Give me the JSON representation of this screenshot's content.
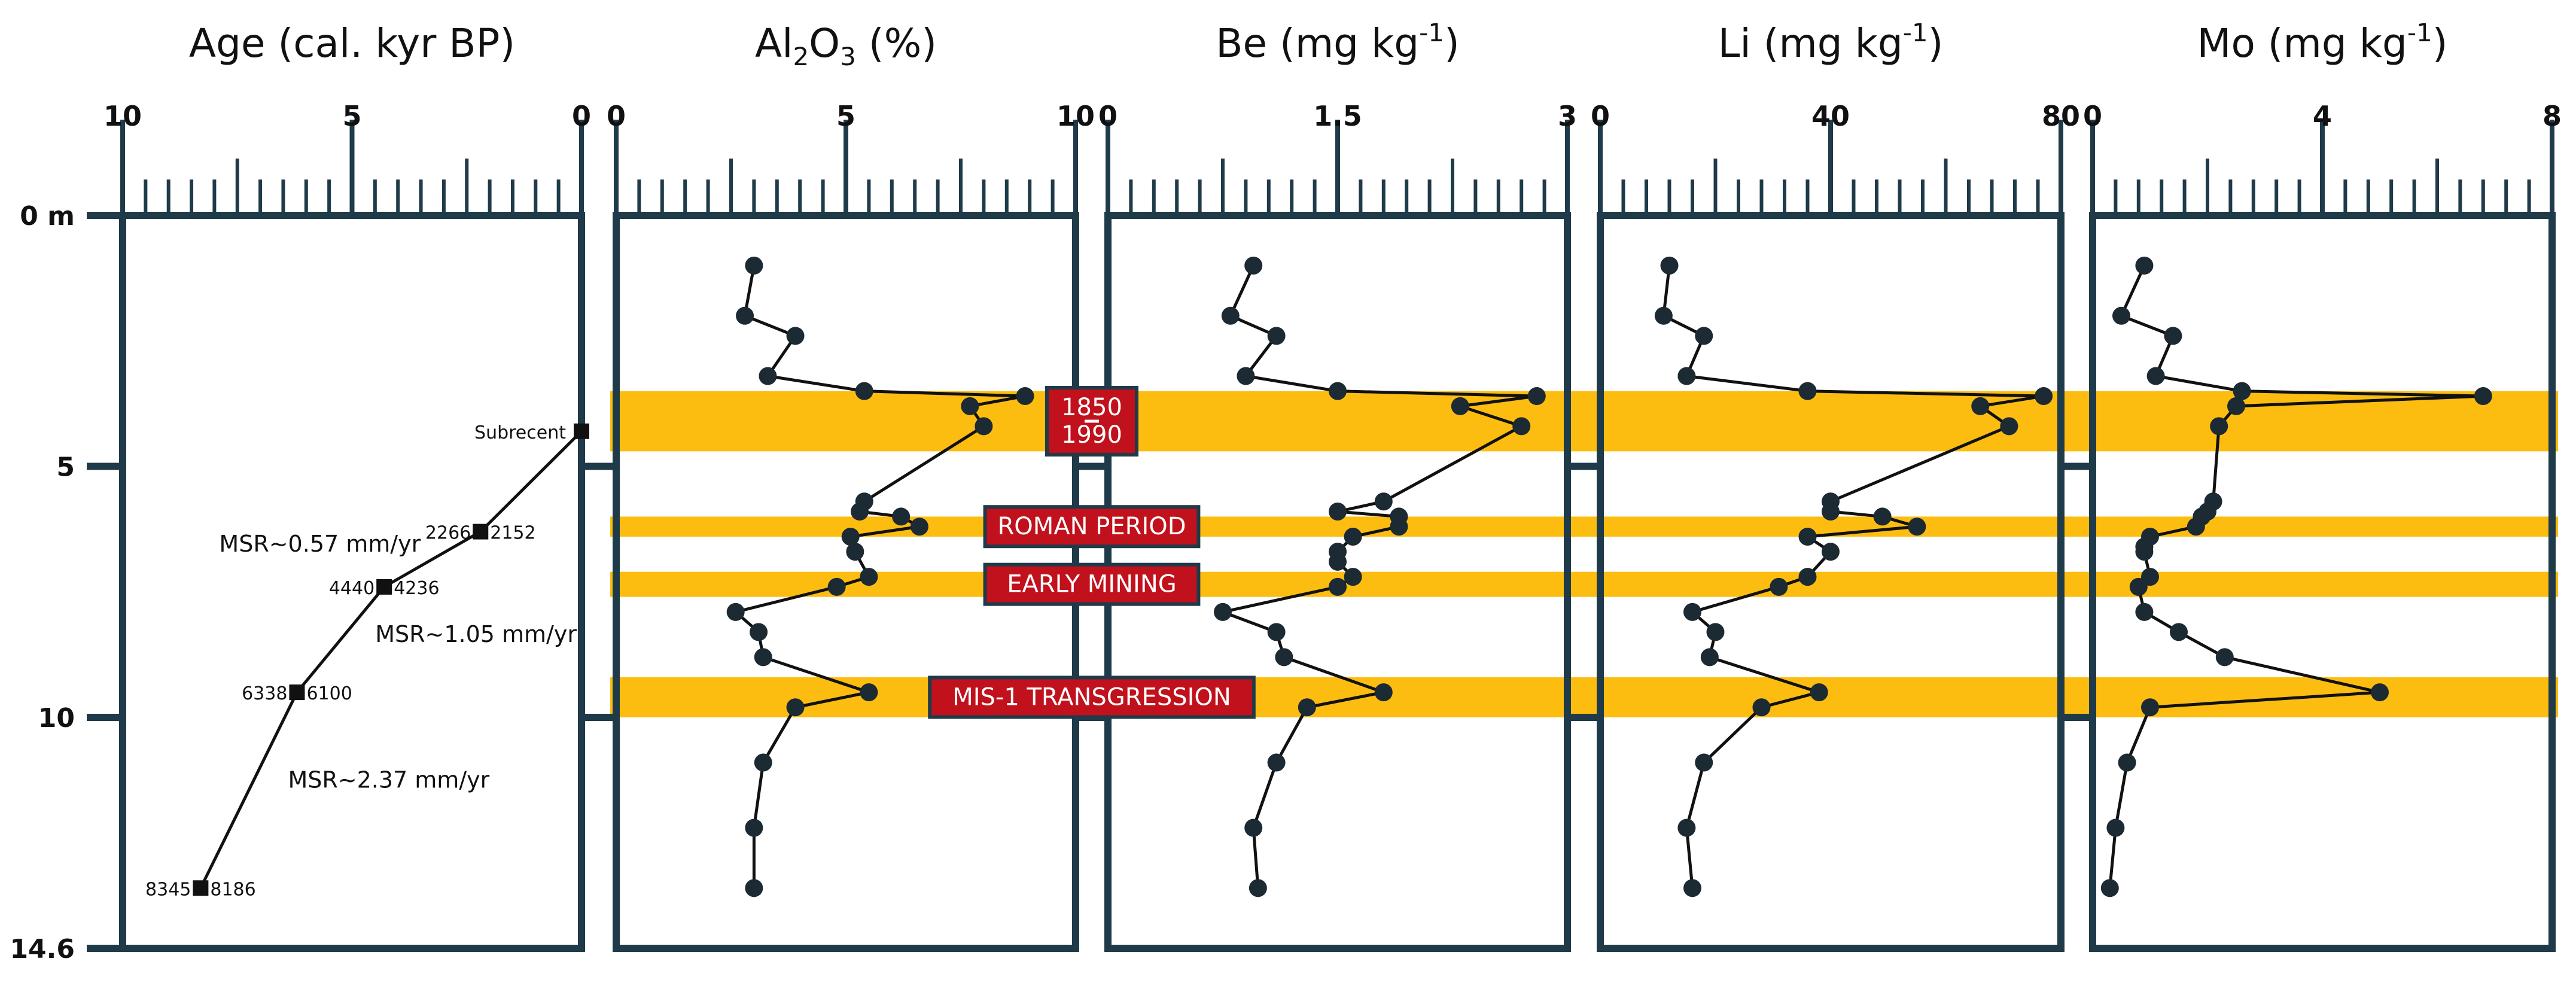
{
  "chart_data": {
    "type": "line",
    "depth_axis": {
      "unit": "m",
      "range": [
        0,
        14.6
      ],
      "tick_labels": [
        {
          "value": 0,
          "label": "0 m"
        },
        {
          "value": 5,
          "label": "5"
        },
        {
          "value": 10,
          "label": "10"
        },
        {
          "value": 14.6,
          "label": "14.6"
        }
      ]
    },
    "bands": [
      {
        "top": 3.5,
        "bottom": 4.7
      },
      {
        "top": 6.0,
        "bottom": 6.4
      },
      {
        "top": 7.1,
        "bottom": 7.6
      },
      {
        "top": 9.2,
        "bottom": 10.0
      }
    ],
    "band_color": "#fdbd10",
    "frame_color": "#1f3a49",
    "point_color": "#1b2a33",
    "label_box_color": "#c0111c",
    "band_labels": [
      {
        "lines": [
          "1850",
          "1990"
        ],
        "depth": 4.1
      },
      {
        "lines": [
          "ROMAN PERIOD"
        ],
        "depth": 6.2
      },
      {
        "lines": [
          "EARLY MINING"
        ],
        "depth": 7.35
      },
      {
        "lines": [
          "MIS-1 TRANSGRESSION"
        ],
        "depth": 9.6
      }
    ],
    "panels": [
      {
        "id": "age",
        "title": "Age (cal. kyr BP)",
        "xlim": [
          10,
          0
        ],
        "tick_labels": [
          "10",
          "5",
          "0"
        ],
        "tick_values": [
          10,
          5,
          0
        ],
        "minor_step": 0.5,
        "series": {
          "x": [
            0,
            2.2,
            4.3,
            6.2,
            8.3
          ],
          "y": [
            4.3,
            6.3,
            7.4,
            9.5,
            13.4
          ]
        },
        "point_labels": [
          {
            "text": "Subrecent",
            "x": 0,
            "y": 4.3
          },
          {
            "text": "2266",
            "x": 2.2,
            "y": 6.3,
            "side": "left"
          },
          {
            "text": "2152",
            "x": 2.2,
            "y": 6.3,
            "side": "right"
          },
          {
            "text": "4440",
            "x": 4.3,
            "y": 7.4,
            "side": "left"
          },
          {
            "text": "4236",
            "x": 4.3,
            "y": 7.4,
            "side": "right"
          },
          {
            "text": "6338",
            "x": 6.2,
            "y": 9.5,
            "side": "left"
          },
          {
            "text": "6100",
            "x": 6.2,
            "y": 9.5,
            "side": "right"
          },
          {
            "text": "8345",
            "x": 8.3,
            "y": 13.4,
            "side": "left"
          },
          {
            "text": "8186",
            "x": 8.3,
            "y": 13.4,
            "side": "right"
          }
        ],
        "annotations": [
          {
            "text": "MSR~0.57 mm/yr",
            "x": 5.7,
            "y": 6.7
          },
          {
            "text": "MSR~1.05 mm/yr",
            "x": 2.3,
            "y": 8.5
          },
          {
            "text": "MSR~2.37 mm/yr",
            "x": 4.2,
            "y": 11.4
          }
        ]
      },
      {
        "id": "al2o3",
        "title_base": "Al",
        "title_sub": "2",
        "title_mid": "O",
        "title_sub2": "3",
        "title_end": " (%)",
        "xlim": [
          0,
          10
        ],
        "tick_labels": [
          "0",
          "5",
          "10"
        ],
        "tick_values": [
          0,
          5,
          10
        ],
        "minor_step": 0.5,
        "series": {
          "x": [
            3.0,
            2.8,
            3.9,
            3.3,
            5.4,
            8.9,
            7.7,
            8.0,
            5.4,
            5.3,
            6.2,
            6.6,
            5.1,
            5.2,
            5.5,
            4.8,
            2.6,
            3.1,
            3.2,
            5.5,
            3.9,
            3.2,
            3.0,
            3.0
          ],
          "y": [
            1.0,
            2.0,
            2.4,
            3.2,
            3.5,
            3.6,
            3.8,
            4.2,
            5.7,
            5.9,
            6.0,
            6.2,
            6.4,
            6.7,
            7.2,
            7.4,
            7.9,
            8.3,
            8.8,
            9.5,
            9.8,
            10.9,
            12.2,
            13.4
          ]
        }
      },
      {
        "id": "be",
        "title_base": "Be (mg kg",
        "title_sup": "-1",
        "title_end": ")",
        "xlim": [
          0,
          3
        ],
        "tick_labels": [
          "0",
          "1.5",
          "3"
        ],
        "tick_values": [
          0,
          1.5,
          3
        ],
        "minor_step": 0.15,
        "series": {
          "x": [
            0.95,
            0.8,
            1.1,
            0.9,
            1.5,
            2.8,
            2.3,
            2.7,
            1.8,
            1.5,
            1.9,
            1.9,
            1.6,
            1.5,
            1.5,
            1.6,
            1.5,
            0.75,
            1.1,
            1.15,
            1.8,
            1.3,
            1.1,
            0.95,
            0.98
          ],
          "y": [
            1.0,
            2.0,
            2.4,
            3.2,
            3.5,
            3.6,
            3.8,
            4.2,
            5.7,
            5.9,
            6.0,
            6.2,
            6.4,
            6.7,
            6.9,
            7.2,
            7.4,
            7.9,
            8.3,
            8.8,
            9.5,
            9.8,
            10.9,
            12.2,
            13.4
          ]
        }
      },
      {
        "id": "li",
        "title_base": "Li (mg kg",
        "title_sup": "-1",
        "title_end": ")",
        "xlim": [
          0,
          80
        ],
        "tick_labels": [
          "0",
          "40",
          "80"
        ],
        "tick_values": [
          0,
          40,
          80
        ],
        "minor_step": 4,
        "series": {
          "x": [
            12,
            11,
            18,
            15,
            36,
            77,
            66,
            71,
            40,
            40,
            49,
            55,
            36,
            40,
            36,
            31,
            16,
            20,
            19,
            38,
            28,
            18,
            15,
            16
          ],
          "y": [
            1.0,
            2.0,
            2.4,
            3.2,
            3.5,
            3.6,
            3.8,
            4.2,
            5.7,
            5.9,
            6.0,
            6.2,
            6.4,
            6.7,
            7.2,
            7.4,
            7.9,
            8.3,
            8.8,
            9.5,
            9.8,
            10.9,
            12.2,
            13.4
          ]
        }
      },
      {
        "id": "mo",
        "title_base": "Mo (mg kg",
        "title_sup": "-1",
        "title_end": ")",
        "xlim": [
          0,
          8
        ],
        "tick_labels": [
          "0",
          "4",
          "8"
        ],
        "tick_values": [
          0,
          4,
          8
        ],
        "minor_step": 0.4,
        "series": {
          "x": [
            0.9,
            0.5,
            1.4,
            1.1,
            2.6,
            6.8,
            2.5,
            2.2,
            2.1,
            2.0,
            1.9,
            1.8,
            1.0,
            0.9,
            0.9,
            1.0,
            0.8,
            0.9,
            1.5,
            2.3,
            5.0,
            1.0,
            0.6,
            0.4,
            0.3
          ],
          "y": [
            1.0,
            2.0,
            2.4,
            3.2,
            3.5,
            3.6,
            3.8,
            4.2,
            5.7,
            5.9,
            6.0,
            6.2,
            6.4,
            6.6,
            6.7,
            7.2,
            7.4,
            7.9,
            8.3,
            8.8,
            9.5,
            9.8,
            10.9,
            12.2,
            13.4
          ]
        }
      }
    ]
  }
}
